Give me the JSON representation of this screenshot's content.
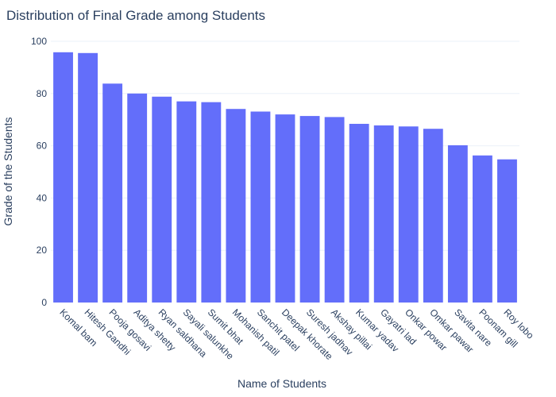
{
  "chart_data": {
    "type": "bar",
    "title": "Distribution of Final Grade among Students",
    "xlabel": "Name of Students",
    "ylabel": "Grade of the Students",
    "categories": [
      "Komal bam",
      "Hitesh Gandhi",
      "Pooja gosavi",
      "Aditya shetty",
      "Ryan saldhana",
      "Sayali salunkhe",
      "Sumit bhat",
      "Mohanish patil",
      "Sanchit patel",
      "Deepak khorate",
      "Suresh jadhav",
      "Akshay pillai",
      "Kumar yadav",
      "Gayatri lad",
      "Onkar powar",
      "Omkar pawar",
      "Savita nare",
      "Poonam gill",
      "Roy lobo"
    ],
    "values": [
      95.8,
      95.5,
      83.8,
      80.0,
      78.8,
      77.0,
      76.7,
      74.1,
      73.1,
      72.0,
      71.4,
      71.0,
      68.4,
      67.8,
      67.4,
      66.5,
      60.2,
      56.3,
      54.8
    ],
    "ylim": [
      0,
      100
    ],
    "yticks": [
      "0",
      "20",
      "40",
      "60",
      "80",
      "100"
    ],
    "grid": true,
    "bar_color": "#636efa",
    "background": "#ffffff",
    "grid_color": "#ebf0f8",
    "text_color": "#2a3f5f"
  }
}
